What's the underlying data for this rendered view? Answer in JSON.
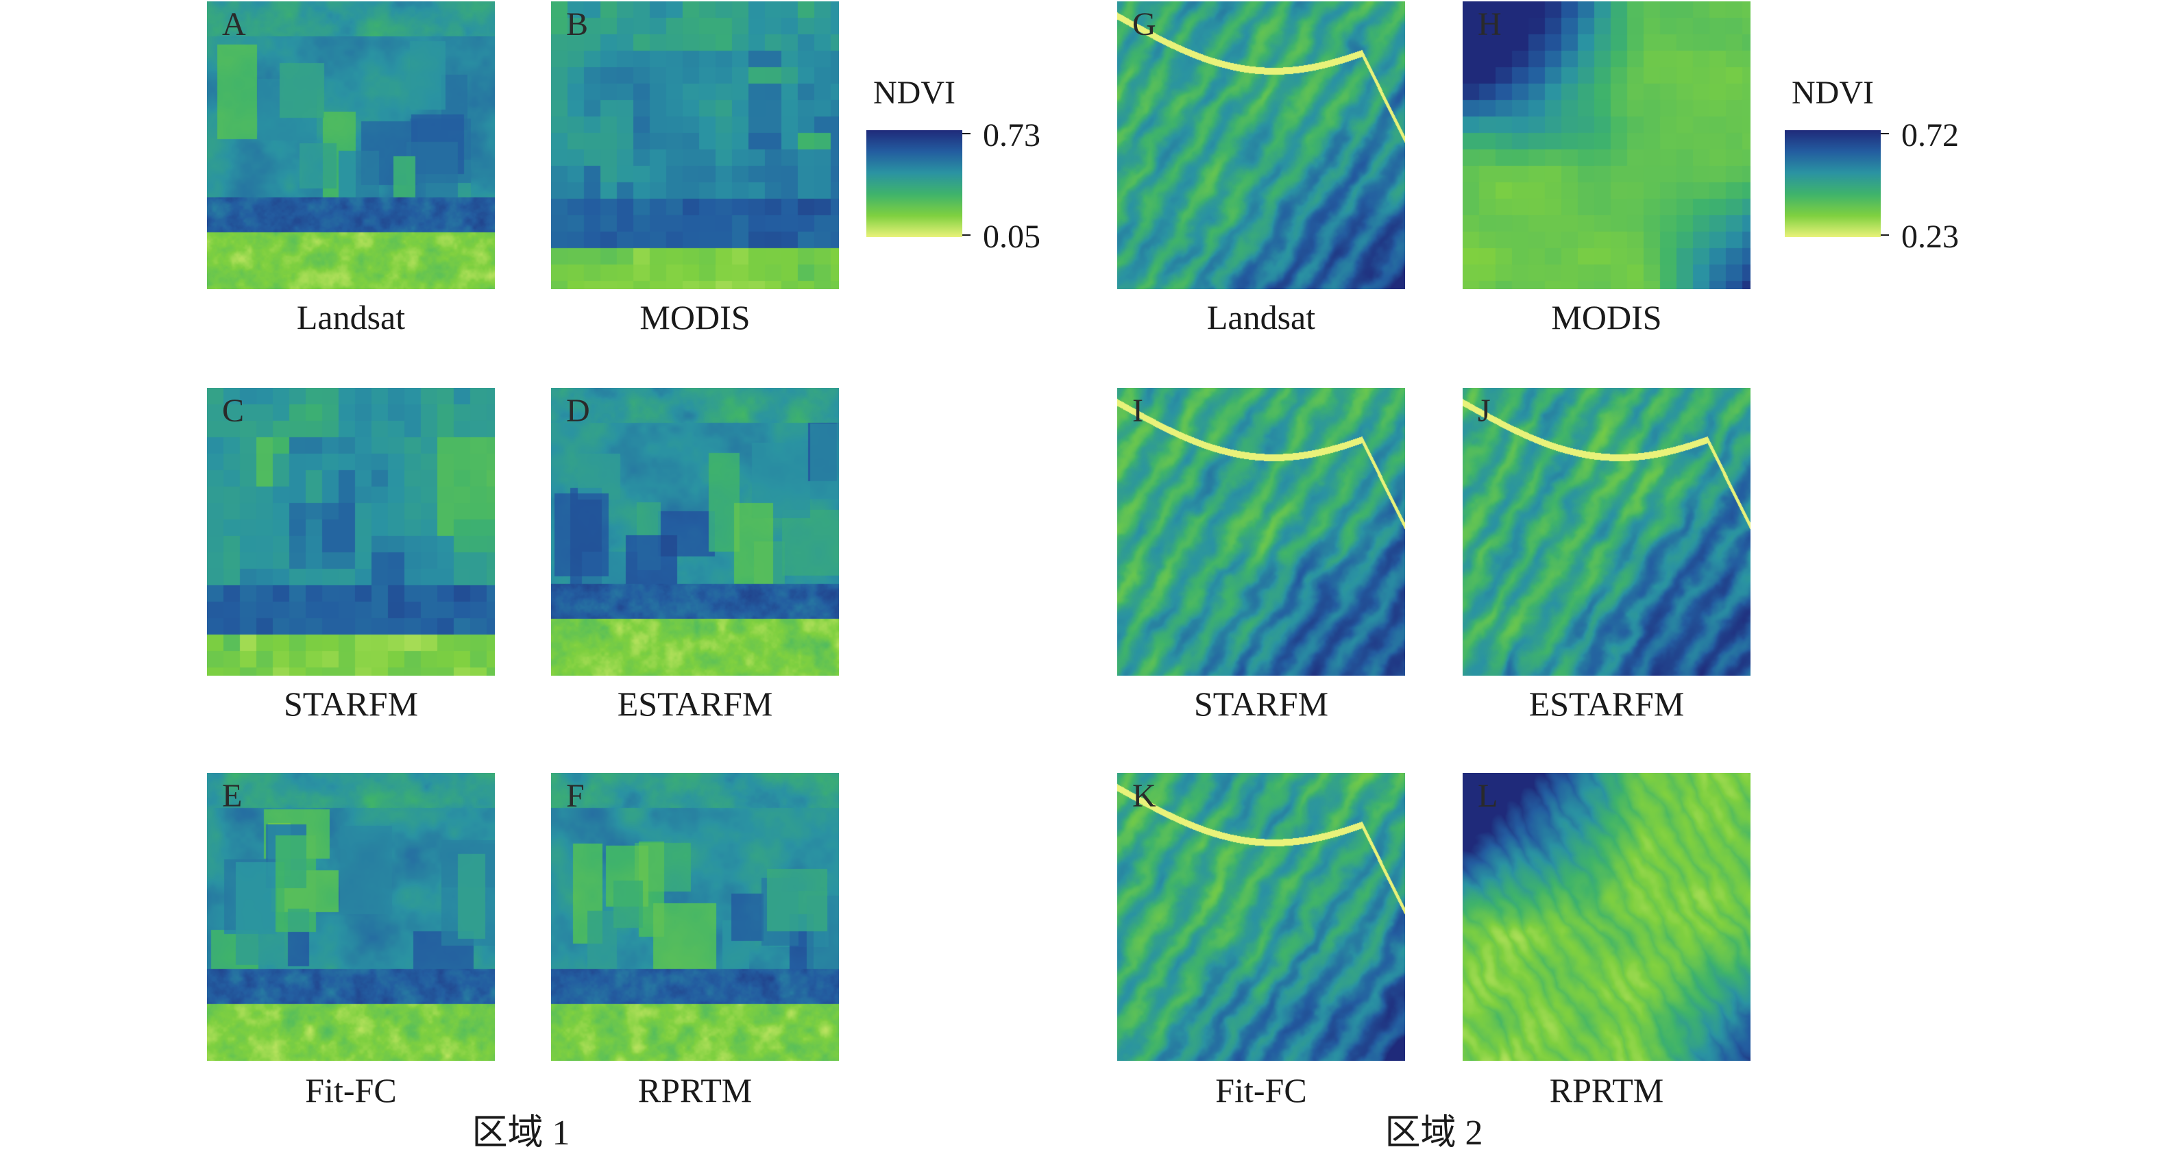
{
  "regions": [
    {
      "label": "区域 1",
      "legend": {
        "title": "NDVI",
        "max": "0.73",
        "min": "0.05"
      },
      "panels": [
        {
          "letter": "A",
          "caption": "Landsat",
          "seed": 11,
          "style": "farm"
        },
        {
          "letter": "B",
          "caption": "MODIS",
          "seed": 12,
          "style": "coarse-farm"
        },
        {
          "letter": "C",
          "caption": "STARFM",
          "seed": 13,
          "style": "coarse-farm"
        },
        {
          "letter": "D",
          "caption": "ESTARFM",
          "seed": 14,
          "style": "farm"
        },
        {
          "letter": "E",
          "caption": "Fit-FC",
          "seed": 15,
          "style": "farm"
        },
        {
          "letter": "F",
          "caption": "RPRTM",
          "seed": 16,
          "style": "farm"
        }
      ]
    },
    {
      "label": "区域 2",
      "legend": {
        "title": "NDVI",
        "max": "0.72",
        "min": "0.23"
      },
      "panels": [
        {
          "letter": "G",
          "caption": "Landsat",
          "seed": 21,
          "style": "river"
        },
        {
          "letter": "H",
          "caption": "MODIS",
          "seed": 22,
          "style": "coarse-green"
        },
        {
          "letter": "I",
          "caption": "STARFM",
          "seed": 23,
          "style": "river"
        },
        {
          "letter": "J",
          "caption": "ESTARFM",
          "seed": 24,
          "style": "river"
        },
        {
          "letter": "K",
          "caption": "Fit-FC",
          "seed": 25,
          "style": "river"
        },
        {
          "letter": "L",
          "caption": "RPRTM",
          "seed": 26,
          "style": "green-ridges"
        }
      ]
    }
  ],
  "colormap": [
    "#e9f27a",
    "#7fd040",
    "#3fb36b",
    "#2a93a2",
    "#235da0",
    "#1f2a7a"
  ]
}
